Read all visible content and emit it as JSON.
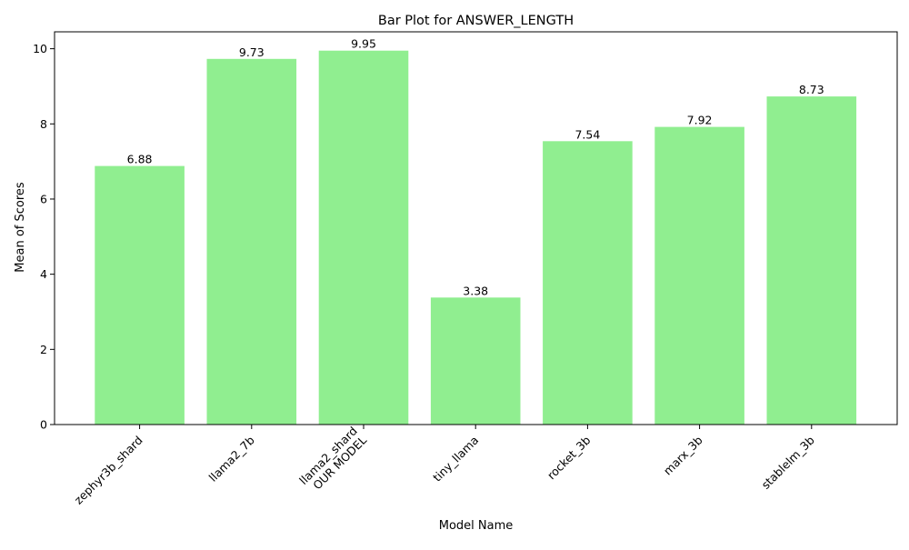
{
  "chart_data": {
    "type": "bar",
    "title": "Bar Plot for ANSWER_LENGTH",
    "xlabel": "Model Name",
    "ylabel": "Mean of Scores",
    "categories": [
      [
        "zephyr3b_shard"
      ],
      [
        "llama2_7b"
      ],
      [
        "llama2_shard",
        "OUR MODEL"
      ],
      [
        "tiny_llama"
      ],
      [
        "rocket_3b"
      ],
      [
        "marx_3b"
      ],
      [
        "stablelm_3b"
      ]
    ],
    "values": [
      6.88,
      9.73,
      9.95,
      3.38,
      7.54,
      7.92,
      8.73
    ],
    "data_labels": [
      "6.88",
      "9.73",
      "9.95",
      "3.38",
      "7.54",
      "7.92",
      "8.73"
    ],
    "yticks": [
      0,
      2,
      4,
      6,
      8,
      10
    ],
    "ylim": [
      0,
      10.45
    ],
    "bar_color": "#90ee90",
    "grid": false,
    "legend": false
  }
}
